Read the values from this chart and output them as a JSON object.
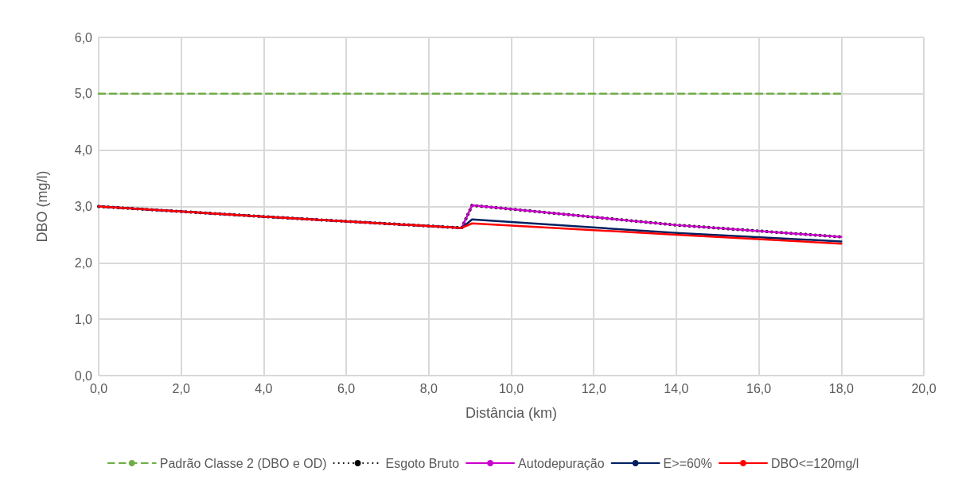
{
  "chart_data": {
    "type": "line",
    "xlabel": "Distância (km)",
    "ylabel": "DBO (mg/l)",
    "xlim": [
      0,
      20
    ],
    "xticks": [
      {
        "value": 0,
        "label": "0,0"
      },
      {
        "value": 2,
        "label": "2,0"
      },
      {
        "value": 4,
        "label": "4,0"
      },
      {
        "value": 6,
        "label": "6,0"
      },
      {
        "value": 8,
        "label": "8,0"
      },
      {
        "value": 10,
        "label": "10,0"
      },
      {
        "value": 12,
        "label": "12,0"
      },
      {
        "value": 14,
        "label": "14,0"
      },
      {
        "value": 16,
        "label": "16,0"
      },
      {
        "value": 18,
        "label": "18,0"
      },
      {
        "value": 20,
        "label": "20,0"
      }
    ],
    "ylim": [
      0,
      6
    ],
    "yticks": [
      {
        "value": 0,
        "label": "0,0"
      },
      {
        "value": 1,
        "label": "1,0"
      },
      {
        "value": 2,
        "label": "2,0"
      },
      {
        "value": 3,
        "label": "3,0"
      },
      {
        "value": 4,
        "label": "4,0"
      },
      {
        "value": 5,
        "label": "5,0"
      },
      {
        "value": 6,
        "label": "6,0"
      }
    ],
    "grid": true,
    "legend": "bottom",
    "marker": "none",
    "series": [
      {
        "name": "Padrão Classe 2 (DBO e OD)",
        "color": "#70ad47",
        "line_style": "dashed",
        "x": [
          0,
          18
        ],
        "values": [
          5,
          5
        ]
      },
      {
        "name": "Esgoto Bruto",
        "color": "#000000",
        "line_style": "dotted",
        "x": [
          0,
          4,
          8.8,
          9.05,
          14,
          18
        ],
        "values": [
          3.0,
          2.82,
          2.62,
          3.02,
          2.67,
          2.46
        ]
      },
      {
        "name": "Autodepuração",
        "color": "#cc00cc",
        "line_style": "solid",
        "x": [
          0,
          4,
          8.8,
          9.05,
          14,
          18
        ],
        "values": [
          3.0,
          2.82,
          2.62,
          3.02,
          2.67,
          2.46
        ]
      },
      {
        "name": "E>=60%",
        "color": "#002060",
        "line_style": "solid",
        "x": [
          0,
          4,
          8.8,
          9.05,
          14,
          18
        ],
        "values": [
          3.0,
          2.82,
          2.62,
          2.77,
          2.53,
          2.38
        ]
      },
      {
        "name": "DBO<=120mg/l",
        "color": "#ff0000",
        "line_style": "solid",
        "x": [
          0,
          4,
          8.8,
          9.05,
          14,
          18
        ],
        "values": [
          3.0,
          2.82,
          2.62,
          2.7,
          2.5,
          2.34
        ]
      }
    ]
  }
}
